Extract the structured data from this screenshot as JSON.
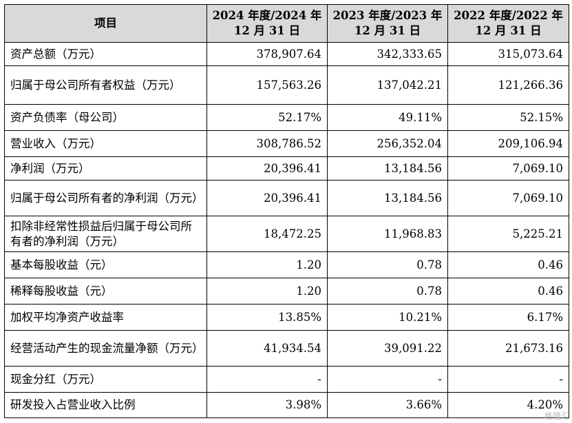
{
  "headers": [
    "项目",
    "2024 年度/2024 年 12 月 31 日",
    "2023 年度/2023 年 12 月 31 日",
    "2022 年度/2022 年 12 月 31 日"
  ],
  "rows": [
    {
      "label": "资产总额（万元）",
      "values": [
        "378,907.64",
        "342,333.65",
        "315,073.64"
      ]
    },
    {
      "label": "归属于母公司所有者权益（万元）",
      "values": [
        "157,563.26",
        "137,042.21",
        "121,266.36"
      ]
    },
    {
      "label": "资产负债率（母公司）",
      "values": [
        "52.17%",
        "49.11%",
        "52.15%"
      ]
    },
    {
      "label": "营业收入（万元）",
      "values": [
        "308,786.52",
        "256,352.04",
        "209,106.94"
      ]
    },
    {
      "label": "净利润（万元）",
      "values": [
        "20,396.41",
        "13,184.56",
        "7,069.10"
      ]
    },
    {
      "label": "归属于母公司所有者的净利润（万元）",
      "values": [
        "20,396.41",
        "13,184.56",
        "7,069.10"
      ]
    },
    {
      "label": "扣除非经常性损益后归属于母公司所有者的净利润（万元）",
      "values": [
        "18,472.25",
        "11,968.83",
        "5,225.21"
      ]
    },
    {
      "label": "基本每股收益（元）",
      "values": [
        "1.20",
        "0.78",
        "0.46"
      ]
    },
    {
      "label": "稀释每股收益（元）",
      "values": [
        "1.20",
        "0.78",
        "0.46"
      ]
    },
    {
      "label": "加权平均净资产收益率",
      "values": [
        "13.85%",
        "10.21%",
        "6.17%"
      ]
    },
    {
      "label": "经营活动产生的现金流量净额（万元）",
      "values": [
        "41,934.54",
        "39,091.22",
        "21,673.16"
      ]
    },
    {
      "label": "现金分红（万元）",
      "values": [
        "-",
        "-",
        "-"
      ]
    },
    {
      "label": "研发投入占营业收入比例",
      "values": [
        "3.98%",
        "3.66%",
        "4.20%"
      ]
    }
  ],
  "watermark": "格隆汇"
}
